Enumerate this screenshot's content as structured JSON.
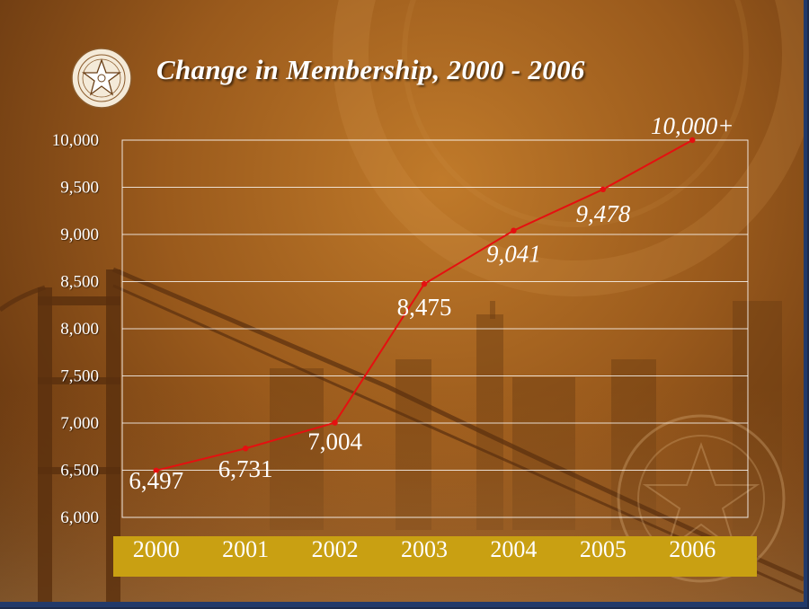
{
  "colors": {
    "background": "#9a5a1c",
    "line": "#e51010",
    "marker": "#e51010",
    "gridline": "#ffffff",
    "category_band": "#c9a012",
    "text": "#ffffff"
  },
  "logo": {
    "icon": "society-seal-star-icon"
  },
  "chart_data": {
    "type": "line",
    "title": "Change in Membership, 2000 - 2006",
    "xlabel": "",
    "ylabel": "",
    "categories": [
      "2000",
      "2001",
      "2002",
      "2003",
      "2004",
      "2005",
      "2006"
    ],
    "series": [
      {
        "values": [
          6497,
          6731,
          7004,
          8475,
          9041,
          9478,
          10000
        ]
      }
    ],
    "data_labels": [
      "6,497",
      "6,731",
      "7,004",
      "8,475",
      "9,041",
      "9,478",
      "10,000+"
    ],
    "data_label_italic": [
      false,
      false,
      false,
      false,
      true,
      true,
      true
    ],
    "y_ticks": [
      "6,000",
      "6,500",
      "7,000",
      "7,500",
      "8,000",
      "8,500",
      "9,000",
      "9,500",
      "10,000"
    ],
    "ylim": [
      6000,
      10000
    ],
    "y_step": 500,
    "grid": true,
    "legend": "none"
  }
}
